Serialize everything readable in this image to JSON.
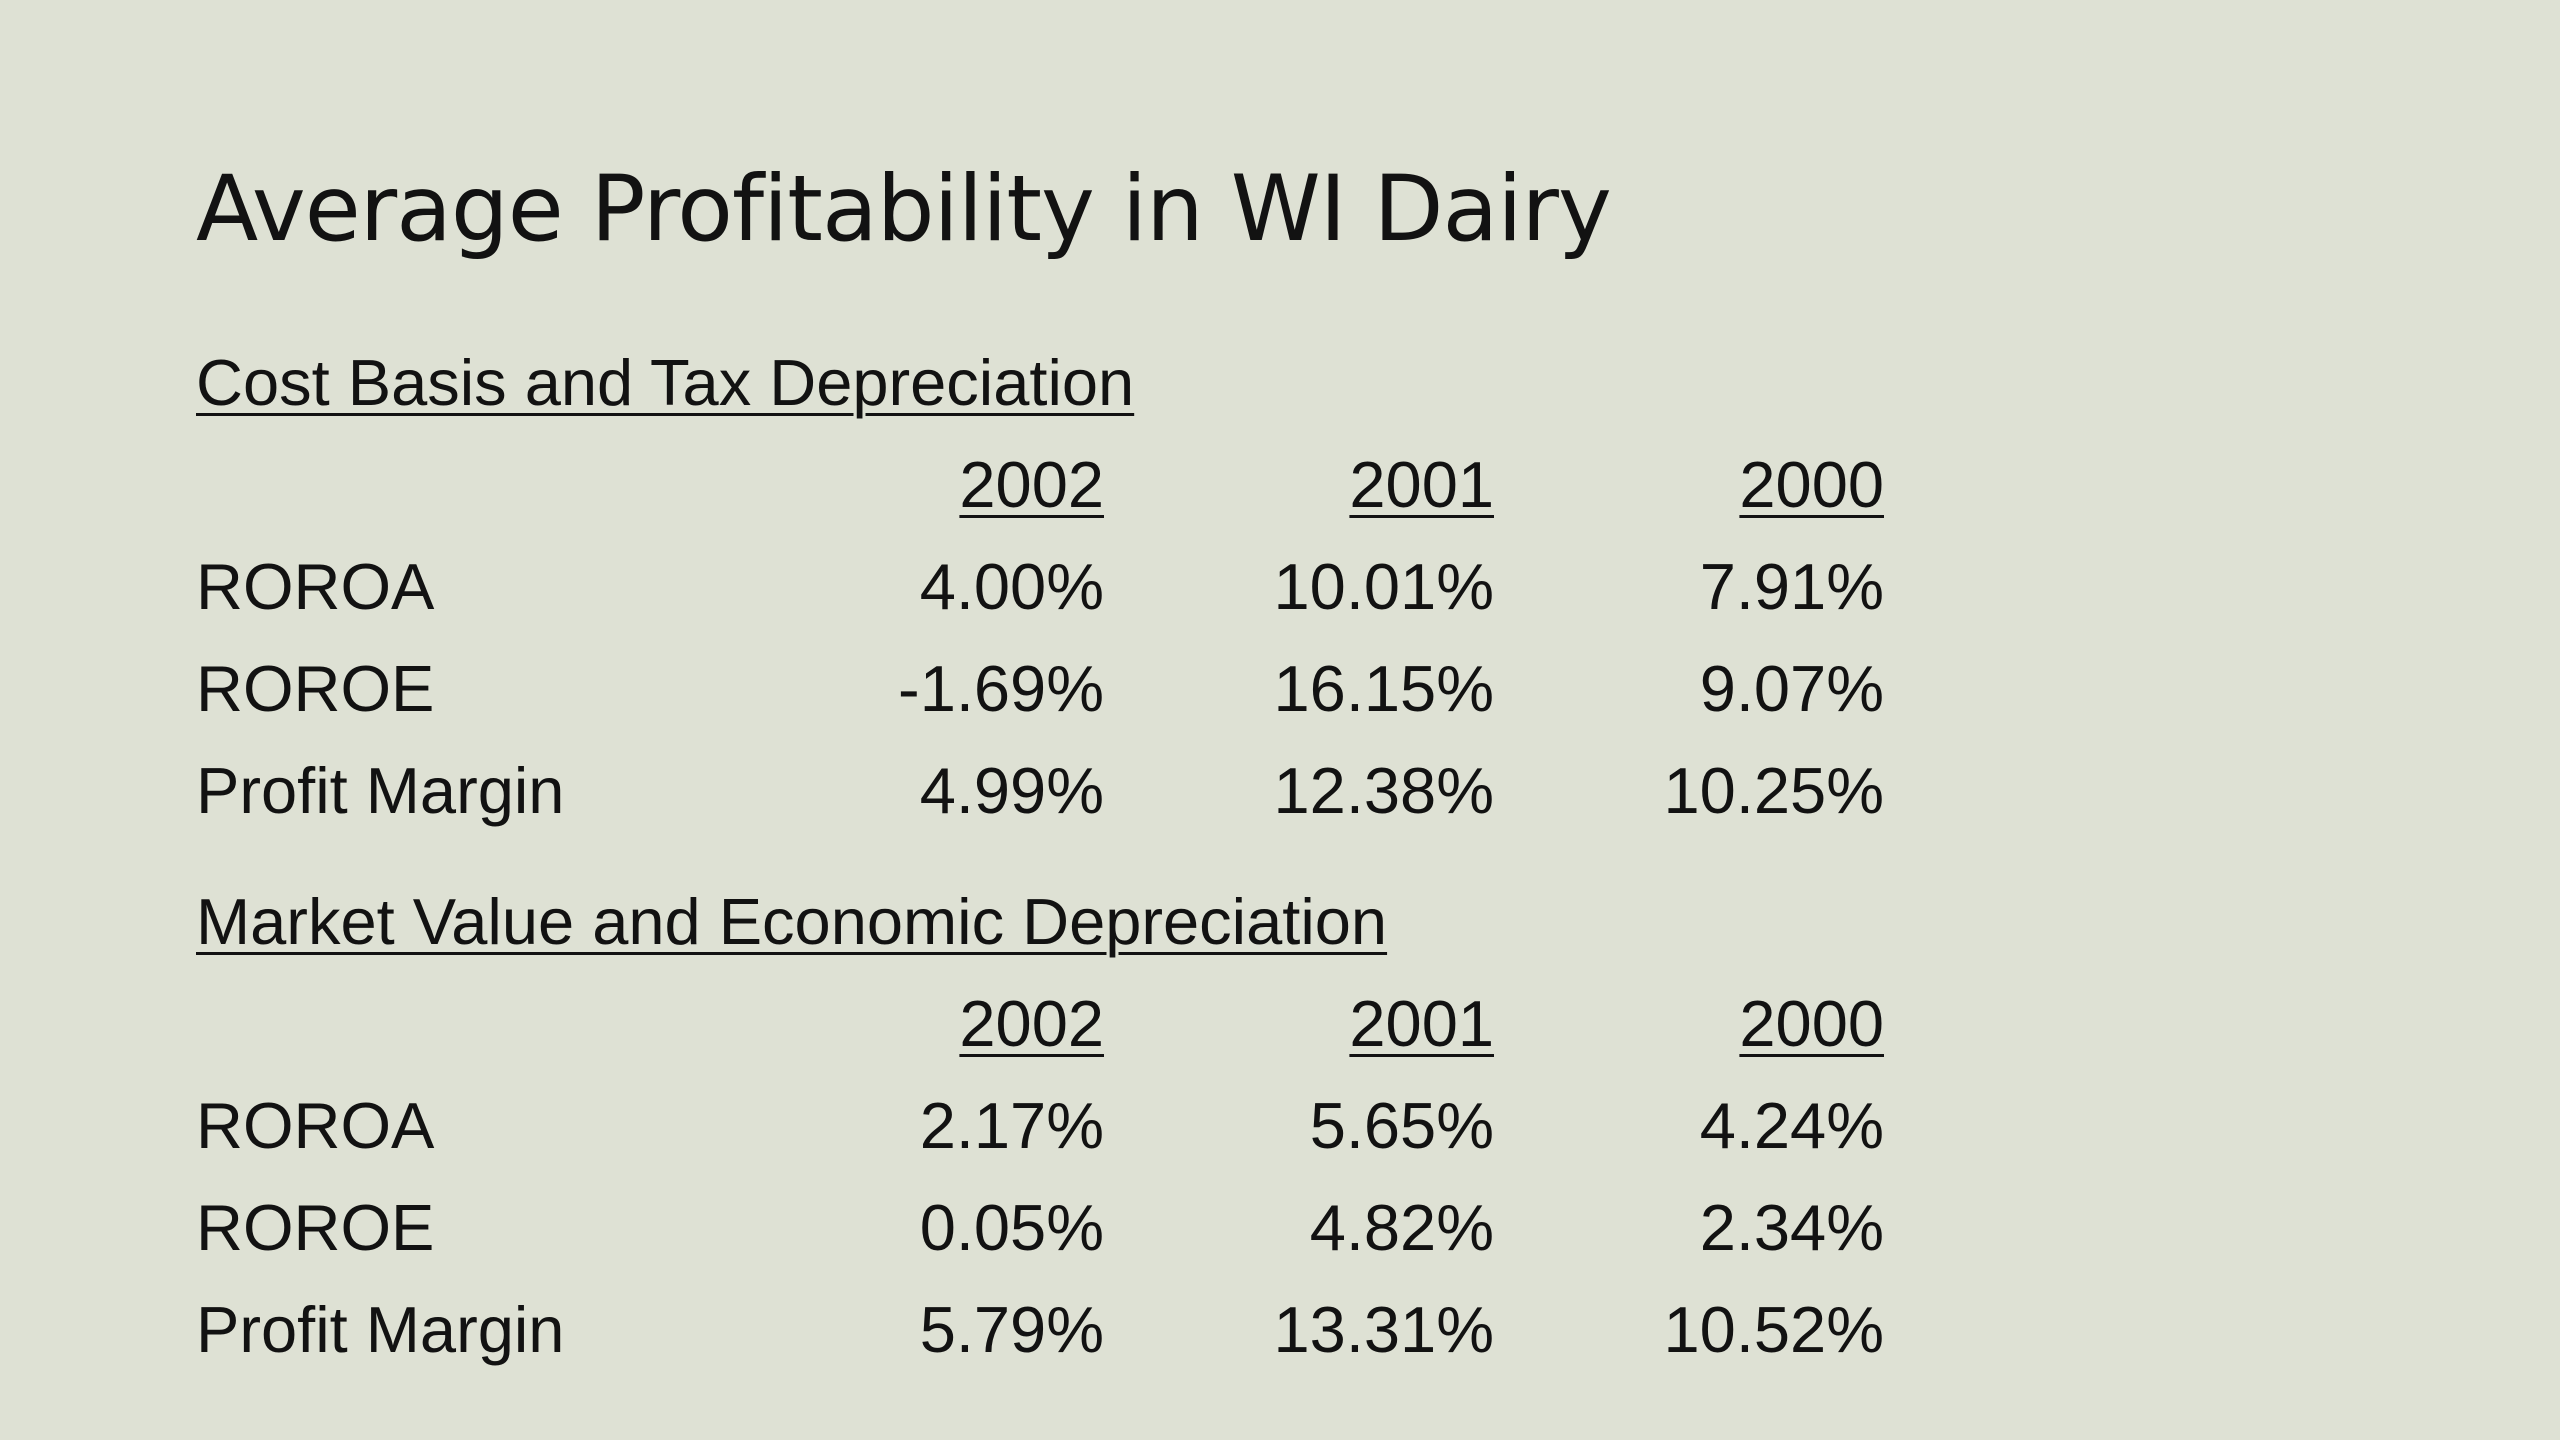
{
  "slide": {
    "title": "Average Profitability in WI Dairy",
    "sections": [
      {
        "heading": "Cost Basis and Tax Depreciation",
        "columns": [
          "2002",
          "2001",
          "2000"
        ],
        "rows": [
          {
            "label": "ROROA",
            "values": [
              "4.00%",
              "10.01%",
              "7.91%"
            ]
          },
          {
            "label": "ROROE",
            "values": [
              "-1.69%",
              "16.15%",
              "9.07%"
            ]
          },
          {
            "label": "Profit Margin",
            "values": [
              "4.99%",
              "12.38%",
              "10.25%"
            ]
          }
        ]
      },
      {
        "heading": "Market Value and Economic Depreciation",
        "columns": [
          "2002",
          "2001",
          "2000"
        ],
        "rows": [
          {
            "label": "ROROA",
            "values": [
              "2.17%",
              "5.65%",
              "4.24%"
            ]
          },
          {
            "label": "ROROE",
            "values": [
              "0.05%",
              "4.82%",
              "2.34%"
            ]
          },
          {
            "label": "Profit Margin",
            "values": [
              "5.79%",
              "13.31%",
              "10.52%"
            ]
          }
        ]
      }
    ]
  }
}
